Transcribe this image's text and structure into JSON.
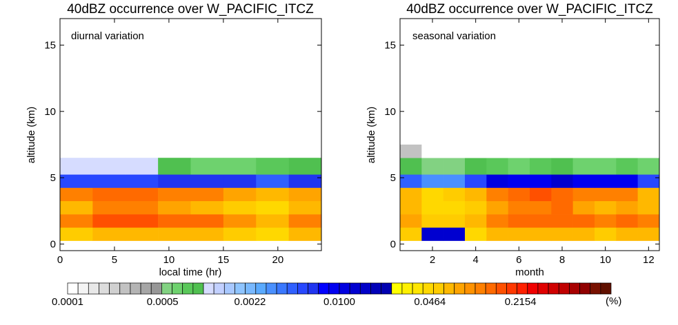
{
  "chart_data": [
    {
      "type": "heatmap",
      "title": "40dBZ occurrence over W_PACIFIC_ITCZ",
      "annotation": "diurnal variation",
      "xlabel": "local time (hr)",
      "ylabel": "altitude (km)",
      "xlim": [
        0,
        24
      ],
      "ylim": [
        -0.5,
        17
      ],
      "xticks": [
        0,
        5,
        10,
        15,
        20
      ],
      "yticks": [
        0,
        5,
        10,
        15
      ],
      "x_bins": [
        0,
        3,
        6,
        9,
        12,
        15,
        18,
        21,
        24
      ],
      "y_bins": [
        0.25,
        1.25,
        2.25,
        3.25,
        4.25,
        5.25,
        6.5
      ],
      "values": [
        [
          0.055,
          0.07,
          0.07,
          0.07,
          0.06,
          0.05,
          0.045,
          0.06
        ],
        [
          0.11,
          0.15,
          0.15,
          0.14,
          0.12,
          0.09,
          0.07,
          0.1
        ],
        [
          0.06,
          0.1,
          0.1,
          0.08,
          0.06,
          0.055,
          0.045,
          0.06
        ],
        [
          0.11,
          0.14,
          0.13,
          0.1,
          0.1,
          0.08,
          0.07,
          0.08
        ],
        [
          0.005,
          0.005,
          0.005,
          0.0065,
          0.0065,
          0.0065,
          0.0042,
          0.0065
        ],
        [
          0.0011,
          0.0011,
          0.0011,
          0.0009,
          0.0007,
          0.0007,
          0.0008,
          0.0009
        ]
      ],
      "background_value": 0.0001
    },
    {
      "type": "heatmap",
      "title": "40dBZ occurrence over W_PACIFIC_ITCZ",
      "annotation": "seasonal variation",
      "xlabel": "month",
      "ylabel": "altitude (km)",
      "xlim": [
        0.5,
        12.5
      ],
      "ylim": [
        -0.5,
        17
      ],
      "xticks": [
        2,
        4,
        6,
        8,
        10,
        12
      ],
      "yticks": [
        0,
        5,
        10,
        15
      ],
      "x_bins": [
        0.5,
        1.5,
        2.5,
        3.5,
        4.5,
        5.5,
        6.5,
        7.5,
        8.5,
        9.5,
        10.5,
        11.5,
        12.5
      ],
      "y_bins": [
        0.25,
        1.25,
        2.25,
        3.25,
        4.25,
        5.25,
        6.5,
        7.5
      ],
      "values": [
        [
          0.05,
          0.013,
          0.013,
          0.045,
          0.07,
          0.07,
          0.07,
          0.07,
          0.06,
          0.055,
          0.07,
          0.07
        ],
        [
          0.08,
          0.05,
          0.055,
          0.06,
          0.11,
          0.12,
          0.14,
          0.14,
          0.13,
          0.1,
          0.12,
          0.11
        ],
        [
          0.06,
          0.044,
          0.045,
          0.055,
          0.08,
          0.1,
          0.11,
          0.12,
          0.08,
          0.065,
          0.08,
          0.06
        ],
        [
          0.06,
          0.045,
          0.05,
          0.06,
          0.1,
          0.13,
          0.15,
          0.14,
          0.11,
          0.1,
          0.1,
          0.06
        ],
        [
          0.0042,
          0.0033,
          0.0033,
          0.0055,
          0.011,
          0.0085,
          0.0085,
          0.012,
          0.0085,
          0.0085,
          0.0085,
          0.0055
        ],
        [
          0.00085,
          0.00055,
          0.00055,
          0.00085,
          0.0008,
          0.0007,
          0.0008,
          0.0009,
          0.0007,
          0.0006,
          0.0008,
          0.0006
        ],
        [
          0.00025,
          0.0001,
          0.0001,
          0.0001,
          0.0001,
          0.0001,
          0.0001,
          0.0001,
          0.0001,
          0.0001,
          0.0001,
          0.0001
        ]
      ],
      "background_value": 0.0001
    }
  ],
  "colorbar": {
    "tick_labels": [
      "0.0001",
      "0.0005",
      "0.0022",
      "0.0100",
      "0.0464",
      "0.2154"
    ],
    "unit_label": "(%)",
    "log_min": 0.0001,
    "log_max": 1.0,
    "colors": [
      "#ffffff",
      "#f4f4f4",
      "#e8e8e8",
      "#dcdcdc",
      "#d0d0d0",
      "#c2c2c2",
      "#b4b4b4",
      "#a6a6a6",
      "#979797",
      "#82d282",
      "#6ed26e",
      "#5ac85a",
      "#50c050",
      "#d6dcff",
      "#c2d0ff",
      "#a8c8ff",
      "#8ec4ff",
      "#78b8ff",
      "#5aaaff",
      "#4a90ff",
      "#3a78ff",
      "#3060ff",
      "#2848ff",
      "#2035f0",
      "#0000ff",
      "#0000f0",
      "#0000e0",
      "#0000d0",
      "#0000c8",
      "#0000b8",
      "#0000b0",
      "#ffff00",
      "#fff000",
      "#ffe600",
      "#ffd800",
      "#ffcc00",
      "#ffb800",
      "#ffa400",
      "#ff9200",
      "#ff8000",
      "#ff6a00",
      "#ff5000",
      "#ff3800",
      "#ff2000",
      "#f00000",
      "#e00000",
      "#d00000",
      "#c00000",
      "#a80000",
      "#900000",
      "#781000",
      "#601000"
    ]
  }
}
